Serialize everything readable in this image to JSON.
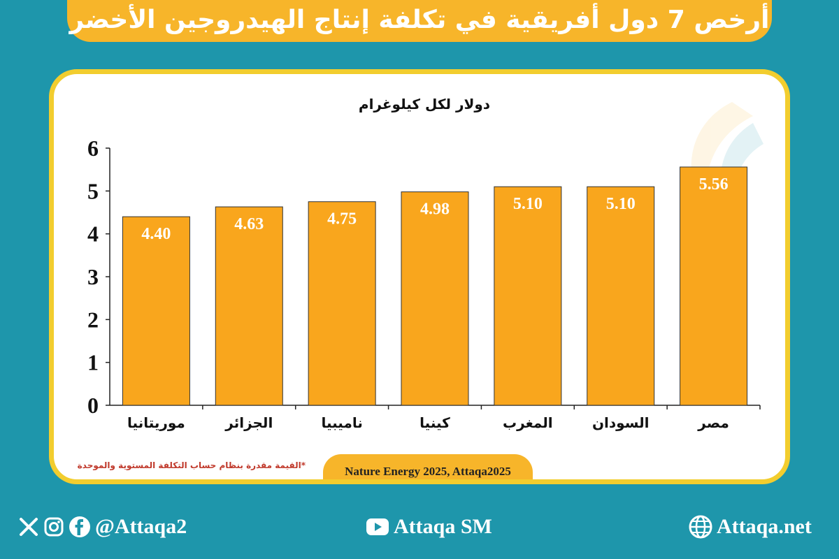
{
  "title": "أرخص 7 دول أفريقية في تكلفة إنتاج الهيدروجين الأخضر",
  "chart_data": {
    "type": "bar",
    "title": "دولار لكل كيلوغرام",
    "categories": [
      "موريتانيا",
      "الجزائر",
      "ناميبيا",
      "كينيا",
      "المغرب",
      "السودان",
      "مصر"
    ],
    "values": [
      4.4,
      4.63,
      4.75,
      4.98,
      5.1,
      5.1,
      5.56
    ],
    "value_labels": [
      "4.40",
      "4.63",
      "4.75",
      "4.98",
      "5.10",
      "5.10",
      "5.56"
    ],
    "y_ticks": [
      "0",
      "1",
      "2",
      "3",
      "4",
      "5",
      "6"
    ],
    "ylim": [
      0,
      6
    ],
    "xlabel": "",
    "ylabel": "",
    "bar_color": "#f9a61d"
  },
  "source": "Nature Energy 2025, Attaqa2025",
  "footnote": "*القيمة مقدرة بنظام حساب التكلفة المستوية والموحدة",
  "footer": {
    "social_handle": "@Attaqa2",
    "youtube_label": "Attaqa SM",
    "website": "Attaqa.net"
  },
  "colors": {
    "background": "#1e96ab",
    "accent": "#f7b52a",
    "card_border": "#f2cd2e"
  }
}
